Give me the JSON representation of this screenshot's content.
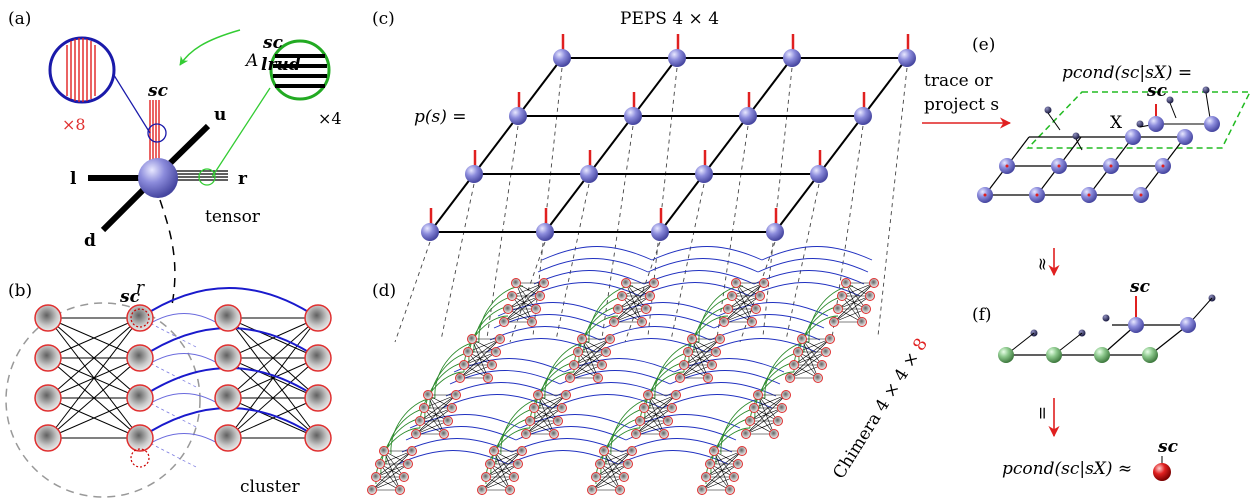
{
  "panels": {
    "a": "(a)",
    "b": "(b)",
    "c": "(c)",
    "d": "(d)",
    "e": "(e)",
    "f": "(f)"
  },
  "panel_a": {
    "tensor_symbol": "A",
    "tensor_superscript": "sc",
    "tensor_subscript": "lrud",
    "leg_s": "sc",
    "leg_u": "u",
    "leg_l": "l",
    "leg_r": "r",
    "leg_d": "d",
    "mult_s": "×8",
    "mult_r": "×4",
    "tensor_label": "tensor"
  },
  "panel_b": {
    "spin_label": "sc",
    "spin_sup": "r",
    "cluster_label": "cluster"
  },
  "panel_c": {
    "title": "PEPS 4 × 4",
    "equation": "p(s) ="
  },
  "panel_d": {
    "chimera_label": "Chimera 4 × 4 × ",
    "chimera_mult": "8"
  },
  "panel_e": {
    "arrow_text_1": "trace or",
    "arrow_text_2": "project s",
    "cond_label": "pcond(sc|sX) =",
    "sc_label": "sc",
    "x_label": "X"
  },
  "panel_f": {
    "approx_symbol": "≈",
    "sc_label": "sc",
    "equal_symbol": "=",
    "final_eq": "pcond(sc|sX) ≈",
    "final_sc": "sc"
  },
  "colors": {
    "tensor": "#8a8ad8",
    "leg_red": "#e02020",
    "cluster_green": "#2a8a2a",
    "coupler_blue": "#2020c0",
    "node_green": "#7ab87a",
    "final_red": "#c01010"
  }
}
